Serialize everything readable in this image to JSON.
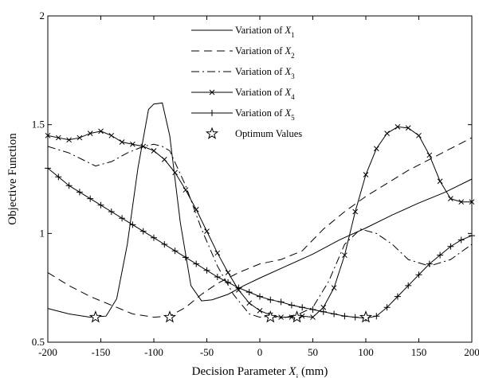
{
  "chart_data": {
    "type": "line",
    "title": "",
    "xlabel": "Decision Parameter X_i (mm)",
    "xlabel_parts": {
      "prefix": "Decision Parameter ",
      "var": "X",
      "sub": "i",
      "suffix": " (mm)"
    },
    "ylabel": "Objective Function",
    "xlim": [
      -200,
      200
    ],
    "ylim": [
      0.5,
      2
    ],
    "xticks": [
      -200,
      -150,
      -100,
      -50,
      0,
      50,
      100,
      150,
      200
    ],
    "yticks": [
      0.5,
      1,
      1.5,
      2
    ],
    "ytick_labels": [
      "0.5",
      "1",
      "1.5",
      "2"
    ],
    "grid": false,
    "legend_position": "top-center",
    "series": [
      {
        "name": "Variation of X_1",
        "legend": {
          "prefix": "Variation of ",
          "var": "X",
          "sub": "1"
        },
        "dash": "solid",
        "marker": "none",
        "color": "#000000",
        "x": [
          -200,
          -180,
          -160,
          -145,
          -135,
          -125,
          -115,
          -105,
          -100,
          -92,
          -85,
          -75,
          -65,
          -55,
          -45,
          -30,
          -15,
          0,
          25,
          50,
          75,
          100,
          125,
          150,
          175,
          200
        ],
        "y": [
          0.655,
          0.63,
          0.615,
          0.62,
          0.7,
          0.95,
          1.3,
          1.57,
          1.595,
          1.6,
          1.45,
          1.05,
          0.76,
          0.69,
          0.695,
          0.72,
          0.76,
          0.795,
          0.85,
          0.905,
          0.97,
          1.025,
          1.085,
          1.14,
          1.19,
          1.25
        ]
      },
      {
        "name": "Variation of X_2",
        "legend": {
          "prefix": "Variation of ",
          "var": "X",
          "sub": "2"
        },
        "dash": "10,6",
        "marker": "none",
        "color": "#000000",
        "x": [
          -200,
          -180,
          -160,
          -140,
          -120,
          -100,
          -85,
          -70,
          -55,
          -40,
          -20,
          0,
          20,
          40,
          60,
          80,
          100,
          120,
          140,
          160,
          180,
          200
        ],
        "y": [
          0.82,
          0.76,
          0.71,
          0.67,
          0.63,
          0.615,
          0.62,
          0.66,
          0.72,
          0.77,
          0.82,
          0.86,
          0.88,
          0.92,
          1.02,
          1.1,
          1.17,
          1.23,
          1.29,
          1.34,
          1.39,
          1.44
        ]
      },
      {
        "name": "Variation of X_3",
        "legend": {
          "prefix": "Variation of ",
          "var": "X",
          "sub": "3"
        },
        "dash": "10,4,2,4",
        "marker": "none",
        "color": "#000000",
        "x": [
          -200,
          -180,
          -155,
          -140,
          -125,
          -110,
          -100,
          -92,
          -85,
          -70,
          -55,
          -40,
          -25,
          -10,
          0,
          10,
          20,
          35,
          50,
          65,
          80,
          95,
          110,
          125,
          140,
          160,
          180,
          200
        ],
        "y": [
          1.4,
          1.37,
          1.31,
          1.33,
          1.37,
          1.4,
          1.41,
          1.4,
          1.38,
          1.22,
          1.02,
          0.85,
          0.72,
          0.63,
          0.615,
          0.62,
          0.61,
          0.625,
          0.66,
          0.78,
          0.95,
          1.02,
          1.0,
          0.95,
          0.88,
          0.85,
          0.88,
          0.95
        ]
      },
      {
        "name": "Variation of X_4",
        "legend": {
          "prefix": "Variation of ",
          "var": "X",
          "sub": "4"
        },
        "dash": "solid",
        "marker": "x",
        "color": "#000000",
        "x": [
          -200,
          -190,
          -180,
          -170,
          -160,
          -150,
          -140,
          -130,
          -120,
          -110,
          -100,
          -90,
          -80,
          -70,
          -60,
          -50,
          -40,
          -30,
          -20,
          -10,
          0,
          10,
          20,
          30,
          40,
          50,
          60,
          70,
          80,
          90,
          100,
          110,
          120,
          130,
          140,
          150,
          160,
          170,
          180,
          190,
          200
        ],
        "y": [
          1.45,
          1.44,
          1.43,
          1.44,
          1.46,
          1.47,
          1.45,
          1.42,
          1.41,
          1.4,
          1.38,
          1.34,
          1.28,
          1.2,
          1.11,
          1.01,
          0.91,
          0.82,
          0.74,
          0.68,
          0.645,
          0.625,
          0.615,
          0.615,
          0.62,
          0.615,
          0.66,
          0.75,
          0.9,
          1.1,
          1.27,
          1.39,
          1.46,
          1.49,
          1.485,
          1.45,
          1.36,
          1.24,
          1.16,
          1.145,
          1.145
        ]
      },
      {
        "name": "Variation of X_5",
        "legend": {
          "prefix": "Variation of ",
          "var": "X",
          "sub": "5"
        },
        "dash": "solid",
        "marker": "plus",
        "color": "#000000",
        "x": [
          -200,
          -190,
          -180,
          -170,
          -160,
          -150,
          -140,
          -130,
          -120,
          -110,
          -100,
          -90,
          -80,
          -70,
          -60,
          -50,
          -40,
          -30,
          -20,
          -10,
          0,
          10,
          20,
          30,
          40,
          50,
          60,
          70,
          80,
          90,
          100,
          110,
          120,
          130,
          140,
          150,
          160,
          170,
          180,
          190,
          200
        ],
        "y": [
          1.3,
          1.26,
          1.22,
          1.19,
          1.16,
          1.13,
          1.1,
          1.07,
          1.04,
          1.01,
          0.98,
          0.95,
          0.92,
          0.89,
          0.86,
          0.83,
          0.8,
          0.775,
          0.75,
          0.73,
          0.71,
          0.695,
          0.685,
          0.67,
          0.66,
          0.65,
          0.64,
          0.63,
          0.62,
          0.615,
          0.61,
          0.62,
          0.66,
          0.71,
          0.76,
          0.81,
          0.86,
          0.9,
          0.94,
          0.97,
          0.99
        ]
      }
    ],
    "optimum_series": {
      "name": "Optimum Values",
      "marker": "star",
      "x": [
        -155,
        -85,
        10,
        35,
        100
      ],
      "y": [
        0.615,
        0.615,
        0.615,
        0.615,
        0.615
      ]
    }
  }
}
